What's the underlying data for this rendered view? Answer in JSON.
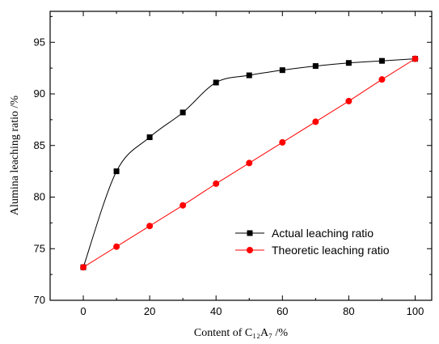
{
  "chart_data": {
    "type": "line",
    "xlabel": "Content of C₁₂A₇ /%",
    "ylabel": "Alumina leaching ratio /%",
    "xlim": [
      -10,
      105
    ],
    "ylim": [
      70,
      98
    ],
    "x_ticks": [
      "0",
      "20",
      "40",
      "60",
      "80",
      "100"
    ],
    "y_ticks": [
      "70",
      "75",
      "80",
      "85",
      "90",
      "95"
    ],
    "grid": false,
    "legend_position": "lower-right",
    "series": [
      {
        "name": "Actual leaching ratio",
        "color": "#000000",
        "marker": "square",
        "x": [
          0,
          10,
          20,
          30,
          40,
          50,
          60,
          70,
          80,
          90,
          100
        ],
        "y": [
          73.2,
          82.5,
          85.8,
          88.2,
          91.1,
          91.8,
          92.3,
          92.7,
          93.0,
          93.2,
          93.4
        ]
      },
      {
        "name": "Theoretic leaching ratio",
        "color": "#ff0000",
        "marker": "circle",
        "x": [
          0,
          10,
          20,
          30,
          40,
          50,
          60,
          70,
          80,
          90,
          100
        ],
        "y": [
          73.2,
          75.2,
          77.2,
          79.2,
          81.3,
          83.3,
          85.3,
          87.3,
          89.3,
          91.4,
          93.4
        ]
      }
    ]
  }
}
